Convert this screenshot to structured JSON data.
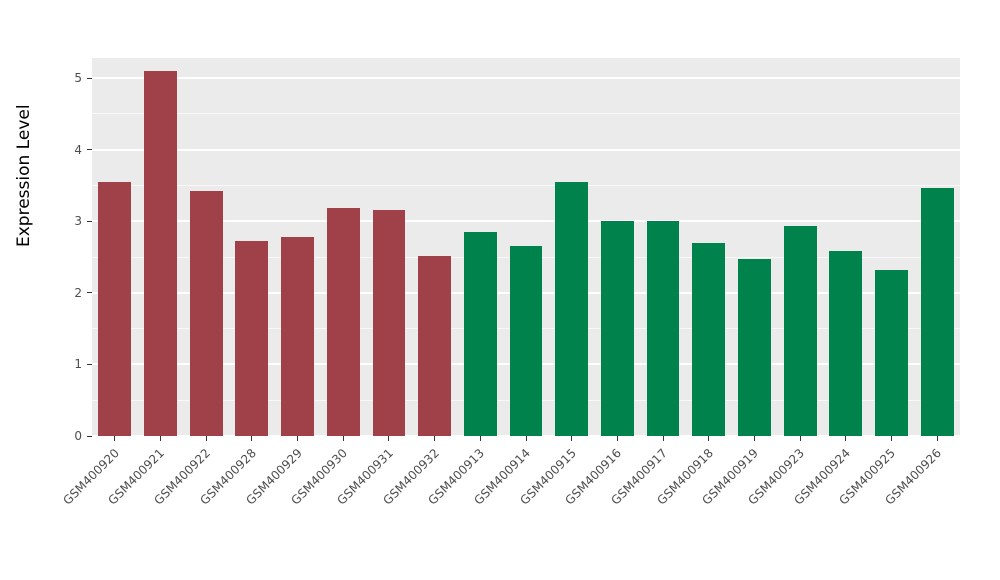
{
  "chart_data": {
    "type": "bar",
    "title": "",
    "xlabel": "",
    "ylabel": "Expression Level",
    "ylim": [
      0,
      5.28
    ],
    "yticks": [
      0,
      1,
      2,
      3,
      4,
      5
    ],
    "grid": "on",
    "legend_position": "none",
    "panel_background": "#EBEBEB",
    "gridline_color": "#FFFFFF",
    "categories": [
      "GSM400920",
      "GSM400921",
      "GSM400922",
      "GSM400928",
      "GSM400929",
      "GSM400930",
      "GSM400931",
      "GSM400932",
      "GSM400913",
      "GSM400914",
      "GSM400915",
      "GSM400916",
      "GSM400917",
      "GSM400918",
      "GSM400919",
      "GSM400923",
      "GSM400924",
      "GSM400925",
      "GSM400926"
    ],
    "values": [
      3.55,
      5.1,
      3.42,
      2.72,
      2.78,
      3.18,
      3.16,
      2.51,
      2.85,
      2.65,
      3.55,
      3.01,
      3.01,
      2.69,
      2.47,
      2.93,
      2.58,
      2.32,
      3.46
    ],
    "bar_colors": [
      "#A04048",
      "#A04048",
      "#A04048",
      "#A04048",
      "#A04048",
      "#A04048",
      "#A04048",
      "#A04048",
      "#00824D",
      "#00824D",
      "#00824D",
      "#00824D",
      "#00824D",
      "#00824D",
      "#00824D",
      "#00824D",
      "#00824D",
      "#00824D",
      "#00824D"
    ],
    "group_colors": {
      "left_group": "#A04048",
      "right_group": "#00824D"
    }
  }
}
